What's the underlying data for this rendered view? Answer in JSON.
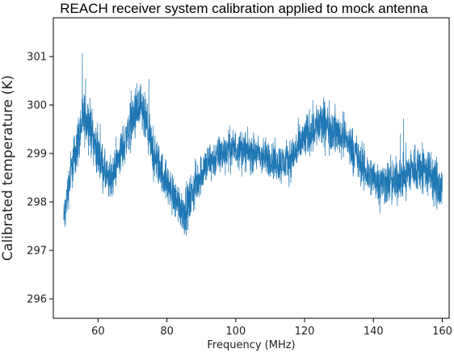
{
  "chart_data": {
    "type": "line",
    "title": "REACH receiver system calibration applied to mock antenna",
    "xlabel": "Frequency (MHz)",
    "ylabel": "Calibrated temperature (K)",
    "xlim": [
      47,
      162
    ],
    "ylim": [
      295.6,
      301.8
    ],
    "xticks": [
      60,
      80,
      100,
      120,
      140,
      160
    ],
    "yticks": [
      296,
      297,
      298,
      299,
      300,
      301
    ],
    "grid": false,
    "series": [
      {
        "color": "#1f77b4",
        "x": [
          50,
          52,
          54,
          55.5,
          57,
          58,
          59,
          60,
          62,
          63,
          64,
          65,
          66,
          67,
          68,
          69,
          70,
          71,
          72,
          73,
          74,
          75,
          76,
          77,
          78,
          80,
          82,
          84,
          85,
          86,
          87,
          88,
          90,
          92,
          94,
          96,
          98,
          100,
          102,
          104,
          106,
          108,
          110,
          112,
          114,
          116,
          118,
          120,
          122,
          124,
          126,
          128,
          130,
          132,
          134,
          136,
          138,
          140,
          142,
          144,
          146,
          148,
          150,
          152,
          154,
          156,
          158,
          160
        ],
        "y": [
          297.6,
          298.6,
          299.2,
          299.7,
          299.7,
          299.5,
          299.2,
          299.0,
          298.6,
          298.4,
          298.5,
          298.7,
          298.9,
          299.1,
          299.3,
          299.5,
          299.7,
          299.8,
          299.9,
          299.8,
          299.6,
          299.3,
          299.0,
          298.8,
          298.7,
          298.4,
          298.1,
          297.9,
          297.8,
          297.9,
          298.1,
          298.3,
          298.6,
          298.8,
          298.9,
          299.0,
          299.1,
          299.1,
          299.1,
          299.0,
          299.0,
          298.9,
          298.9,
          298.8,
          298.8,
          298.9,
          299.1,
          299.3,
          299.5,
          299.6,
          299.6,
          299.5,
          299.4,
          299.3,
          299.1,
          298.8,
          298.6,
          298.5,
          298.4,
          298.4,
          298.4,
          298.5,
          298.6,
          298.7,
          298.7,
          298.6,
          298.4,
          298.2
        ],
        "noise": [
          0.6,
          0.65,
          0.75,
          0.8,
          0.8,
          0.75,
          0.7,
          0.7,
          0.65,
          0.6,
          0.6,
          0.6,
          0.62,
          0.65,
          0.7,
          0.72,
          0.75,
          0.78,
          0.8,
          0.78,
          0.75,
          0.72,
          0.7,
          0.68,
          0.65,
          0.62,
          0.62,
          0.65,
          0.68,
          0.7,
          0.7,
          0.68,
          0.62,
          0.6,
          0.6,
          0.6,
          0.6,
          0.58,
          0.58,
          0.58,
          0.58,
          0.58,
          0.58,
          0.6,
          0.62,
          0.62,
          0.65,
          0.68,
          0.7,
          0.72,
          0.72,
          0.7,
          0.68,
          0.66,
          0.65,
          0.65,
          0.65,
          0.65,
          0.65,
          0.66,
          0.68,
          0.7,
          0.72,
          0.74,
          0.76,
          0.78,
          0.8,
          0.8
        ]
      }
    ]
  }
}
